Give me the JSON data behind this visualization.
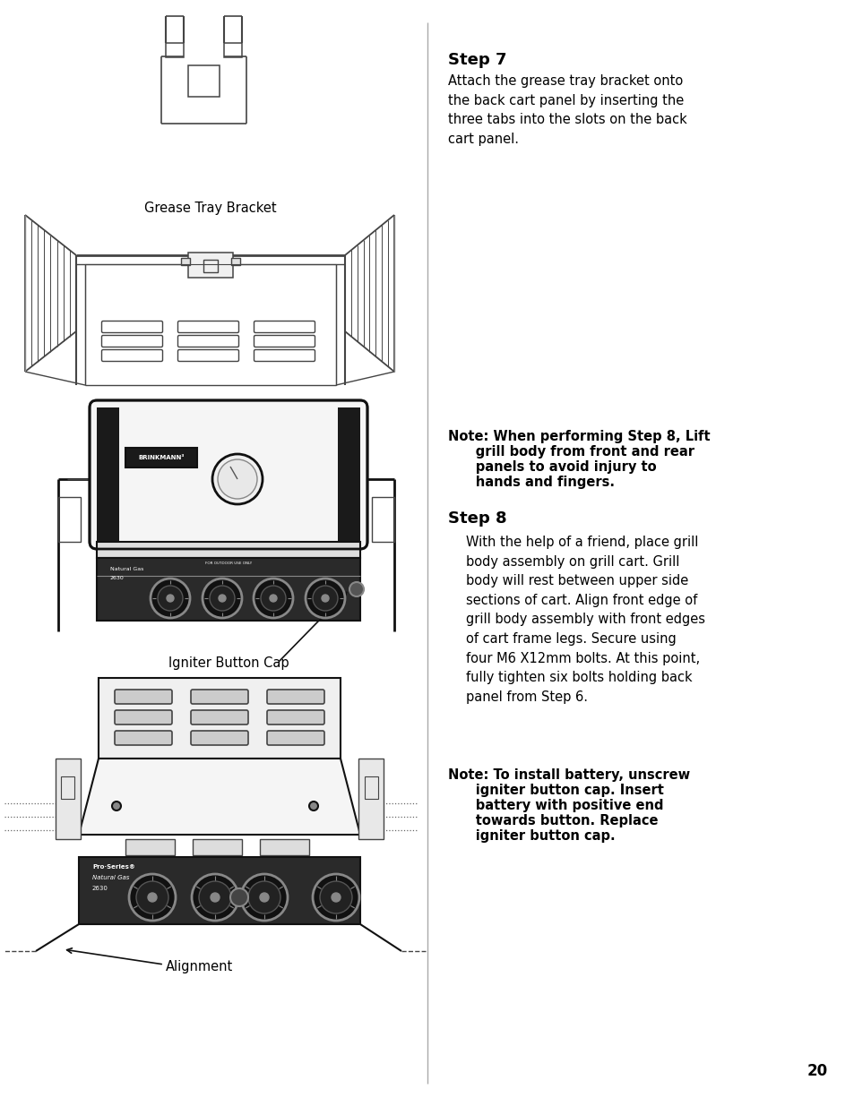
{
  "bg_color": "#ffffff",
  "text_color": "#000000",
  "lc": "#444444",
  "lc_dark": "#111111",
  "step7_title": "Step 7",
  "step7_body": "Attach the grease tray bracket onto\nthe back cart panel by inserting the\nthree tabs into the slots on the back\ncart panel.",
  "note1_text_lines": [
    "Note: When performing Step 8, Lift",
    "      grill body from front and rear",
    "      panels to avoid injury to",
    "      hands and fingers."
  ],
  "step8_title": "Step 8",
  "step8_body": "With the help of a friend, place grill\nbody assembly on grill cart. Grill\nbody will rest between upper side\nsections of cart. Align front edge of\ngrill body assembly with front edges\nof cart frame legs. Secure using\nfour M6 X12mm bolts. At this point,\nfully tighten six bolts holding back\npanel from Step 6.",
  "note2_text_lines": [
    "Note: To install battery, unscrew",
    "      igniter button cap. Insert",
    "      battery with positive end",
    "      towards button. Replace",
    "      igniter button cap."
  ],
  "page_num": "20",
  "label_grease": "Grease Tray Bracket",
  "label_igniter": "Igniter Button Cap",
  "label_alignment": "Alignment"
}
